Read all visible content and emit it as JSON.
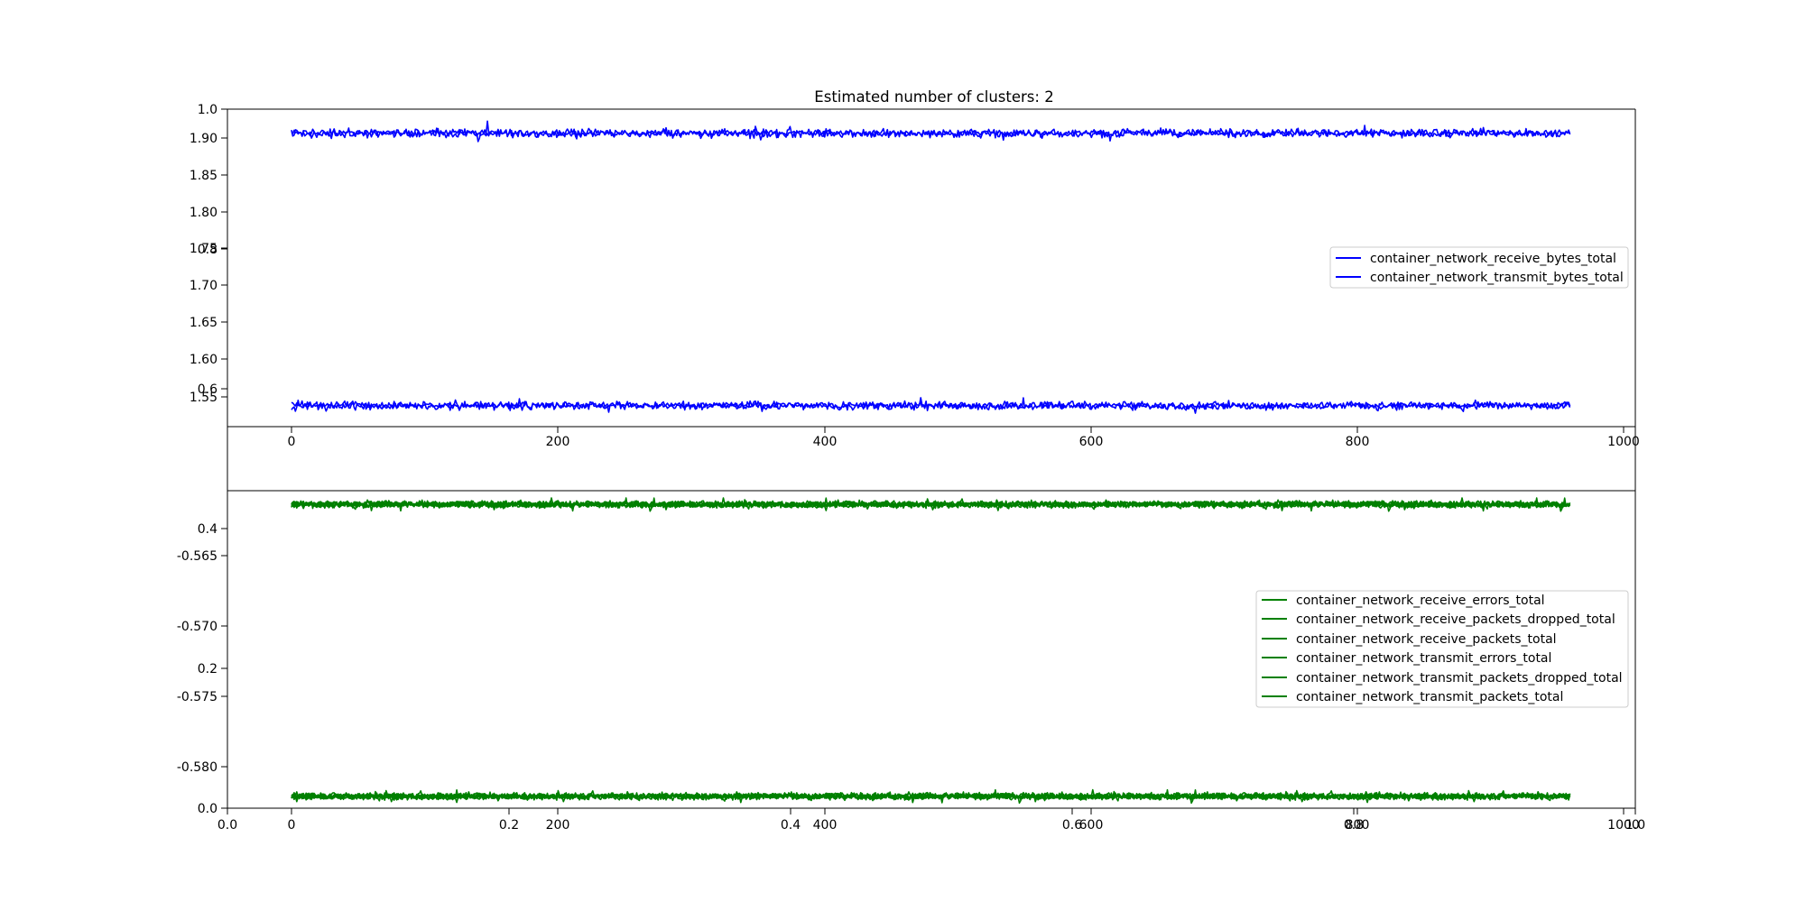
{
  "chart_data": {
    "type": "line",
    "title": "Estimated number of clusters: 2",
    "figure_axis": {
      "x_ticks": [
        "0.0",
        "0.2",
        "0.4",
        "0.6",
        "0.8",
        "1.0"
      ],
      "y_ticks": [
        "0.0",
        "0.2",
        "0.4",
        "0.6",
        "0.8",
        "1.0"
      ],
      "xlim": [
        0,
        1
      ],
      "ylim": [
        0,
        1
      ]
    },
    "subplots": [
      {
        "color": "#0000ff",
        "x_ticks": [
          "0",
          "200",
          "400",
          "600",
          "800",
          "1000"
        ],
        "y_ticks": [
          "1.55",
          "1.60",
          "1.65",
          "1.70",
          "1.75",
          "1.80",
          "1.85",
          "1.90"
        ],
        "ylim": [
          1.517,
          1.939
        ],
        "xlim": [
          -48,
          1008
        ],
        "n_points": 960,
        "series": [
          {
            "name": "container_network_receive_bytes_total",
            "values": null
          },
          {
            "name": "container_network_transmit_bytes_total",
            "values": null
          }
        ],
        "clusters": [
          {
            "center": 1.907,
            "amplitude": 0.005
          },
          {
            "center": 1.545,
            "amplitude": 0.005
          }
        ],
        "legend_loc": "right"
      },
      {
        "color": "#008000",
        "x_ticks": [
          "0",
          "200",
          "400",
          "600",
          "800",
          "1000"
        ],
        "y_ticks": [
          "-0.565",
          "-0.570",
          "-0.575",
          "-0.580"
        ],
        "ylim": [
          -0.5813,
          -0.5627
        ],
        "xlim": [
          -48,
          1008
        ],
        "n_points": 960,
        "series": [
          {
            "name": "container_network_receive_errors_total",
            "values": null
          },
          {
            "name": "container_network_receive_packets_dropped_total",
            "values": null
          },
          {
            "name": "container_network_receive_packets_total",
            "values": null
          },
          {
            "name": "container_network_transmit_errors_total",
            "values": null
          },
          {
            "name": "container_network_transmit_packets_dropped_total",
            "values": null
          },
          {
            "name": "container_network_transmit_packets_total",
            "values": null
          }
        ],
        "clusters": [
          {
            "center": -0.5635,
            "amplitude": 0.00018
          },
          {
            "center": -0.5806,
            "amplitude": 0.00018
          }
        ],
        "legend_loc": "right"
      }
    ]
  }
}
